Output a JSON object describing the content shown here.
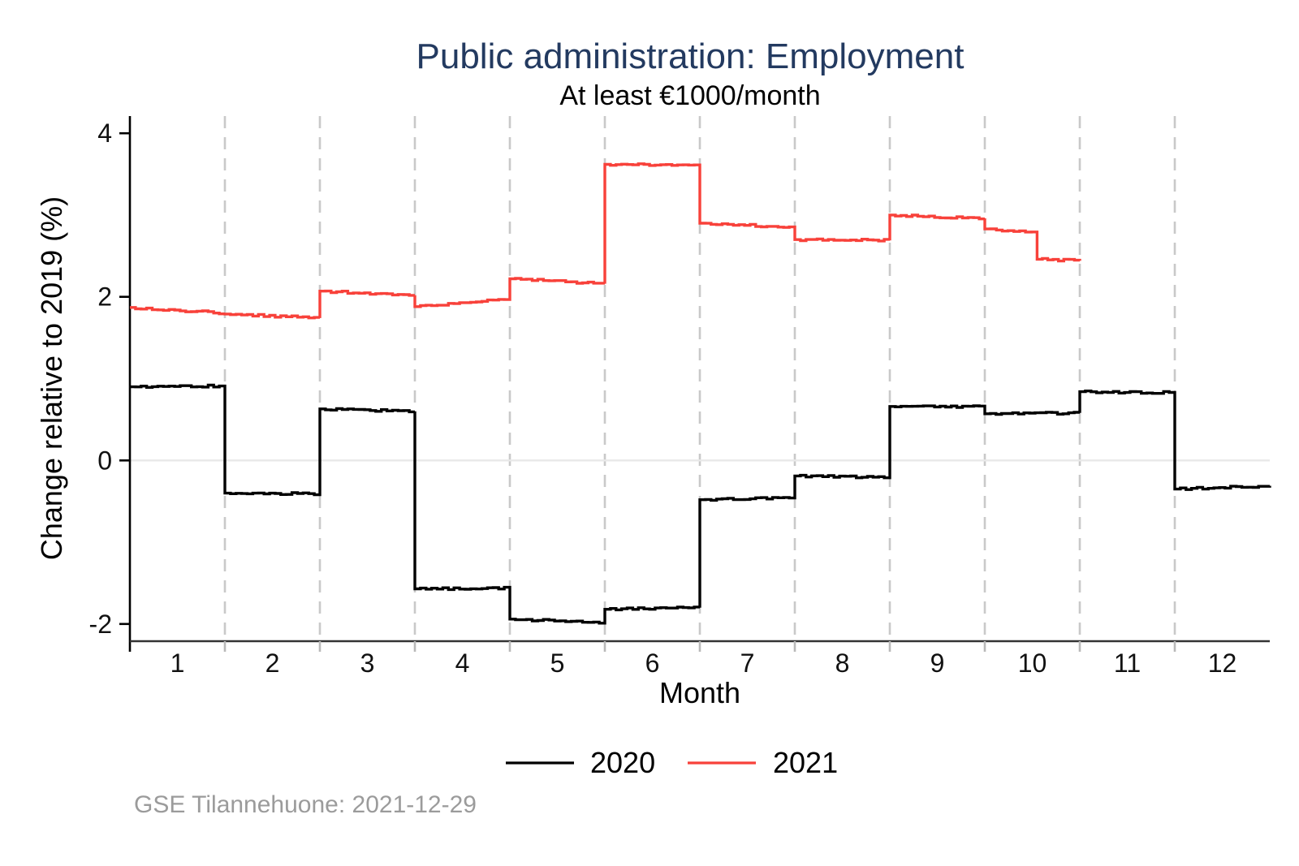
{
  "footer": "GSE Tilannehuone: 2021-12-29",
  "colors": {
    "title": "#233a60",
    "subtitle": "#000000",
    "axis_y": "#000000",
    "axis_x": "#333333",
    "x_gridline": "#c9c9c9",
    "zero_line": "#e8e8e8",
    "x_tick": "#b9b9b9",
    "tick_label": "#111111",
    "footer_text": "#9b9b9b",
    "series_2020": "#000000",
    "series_2021": "#f8413a"
  },
  "chart_data": {
    "type": "line",
    "style": "step line at daily resolution, level shifts at month boundaries",
    "title": "Public administration: Employment",
    "subtitle": "At least €1000/month",
    "xlabel": "Month",
    "ylabel": "Change relative to 2019 (%)",
    "xlim": [
      0.5,
      12.5
    ],
    "ylim": [
      -2.21,
      4.21
    ],
    "xticks": [
      "1",
      "2",
      "3",
      "4",
      "5",
      "6",
      "7",
      "8",
      "9",
      "10",
      "11",
      "12"
    ],
    "yticks": [
      4,
      2,
      0,
      -2
    ],
    "x_gridlines": [
      1.5,
      2.5,
      3.5,
      4.5,
      5.5,
      6.5,
      7.5,
      8.5,
      9.5,
      10.5,
      11.5
    ],
    "zero_line": true,
    "grid": "vertical dashed gridlines at month boundaries; light solid horizontal line at y=0",
    "legend_position": "bottom-center",
    "series": [
      {
        "name": "2020",
        "color": "#000000",
        "segments_note": "each segment = [month_start, month_end, value_start_pct, value_end_pct]",
        "segments": [
          [
            0.5,
            1.5,
            0.9,
            0.91
          ],
          [
            1.5,
            2.5,
            -0.4,
            -0.41
          ],
          [
            2.5,
            3.5,
            0.63,
            0.6
          ],
          [
            3.5,
            4.5,
            -1.57,
            -1.56
          ],
          [
            4.5,
            5.5,
            -1.94,
            -1.98
          ],
          [
            5.5,
            6.5,
            -1.82,
            -1.8
          ],
          [
            6.5,
            7.5,
            -0.48,
            -0.45
          ],
          [
            7.5,
            8.5,
            -0.19,
            -0.21
          ],
          [
            8.5,
            9.5,
            0.66,
            0.66
          ],
          [
            9.5,
            10.5,
            0.57,
            0.58
          ],
          [
            10.5,
            11.5,
            0.84,
            0.83
          ],
          [
            11.5,
            12.5,
            -0.35,
            -0.31
          ]
        ]
      },
      {
        "name": "2021",
        "color": "#f8413a",
        "segments_note": "each segment = [month_start, month_end, value_start_pct, value_end_pct]; series ends at end of October with an extra mid-October step down",
        "segments": [
          [
            0.5,
            1.5,
            1.87,
            1.8
          ],
          [
            1.5,
            2.5,
            1.79,
            1.74
          ],
          [
            2.5,
            3.5,
            2.07,
            2.02
          ],
          [
            3.5,
            4.5,
            1.88,
            1.98
          ],
          [
            4.5,
            5.5,
            2.22,
            2.16
          ],
          [
            5.5,
            6.5,
            3.62,
            3.61
          ],
          [
            6.5,
            7.5,
            2.9,
            2.85
          ],
          [
            7.5,
            8.5,
            2.7,
            2.69
          ],
          [
            8.5,
            9.5,
            3.0,
            2.96
          ],
          [
            9.5,
            10.05,
            2.83,
            2.79
          ],
          [
            10.05,
            10.5,
            2.46,
            2.44
          ]
        ]
      }
    ]
  }
}
